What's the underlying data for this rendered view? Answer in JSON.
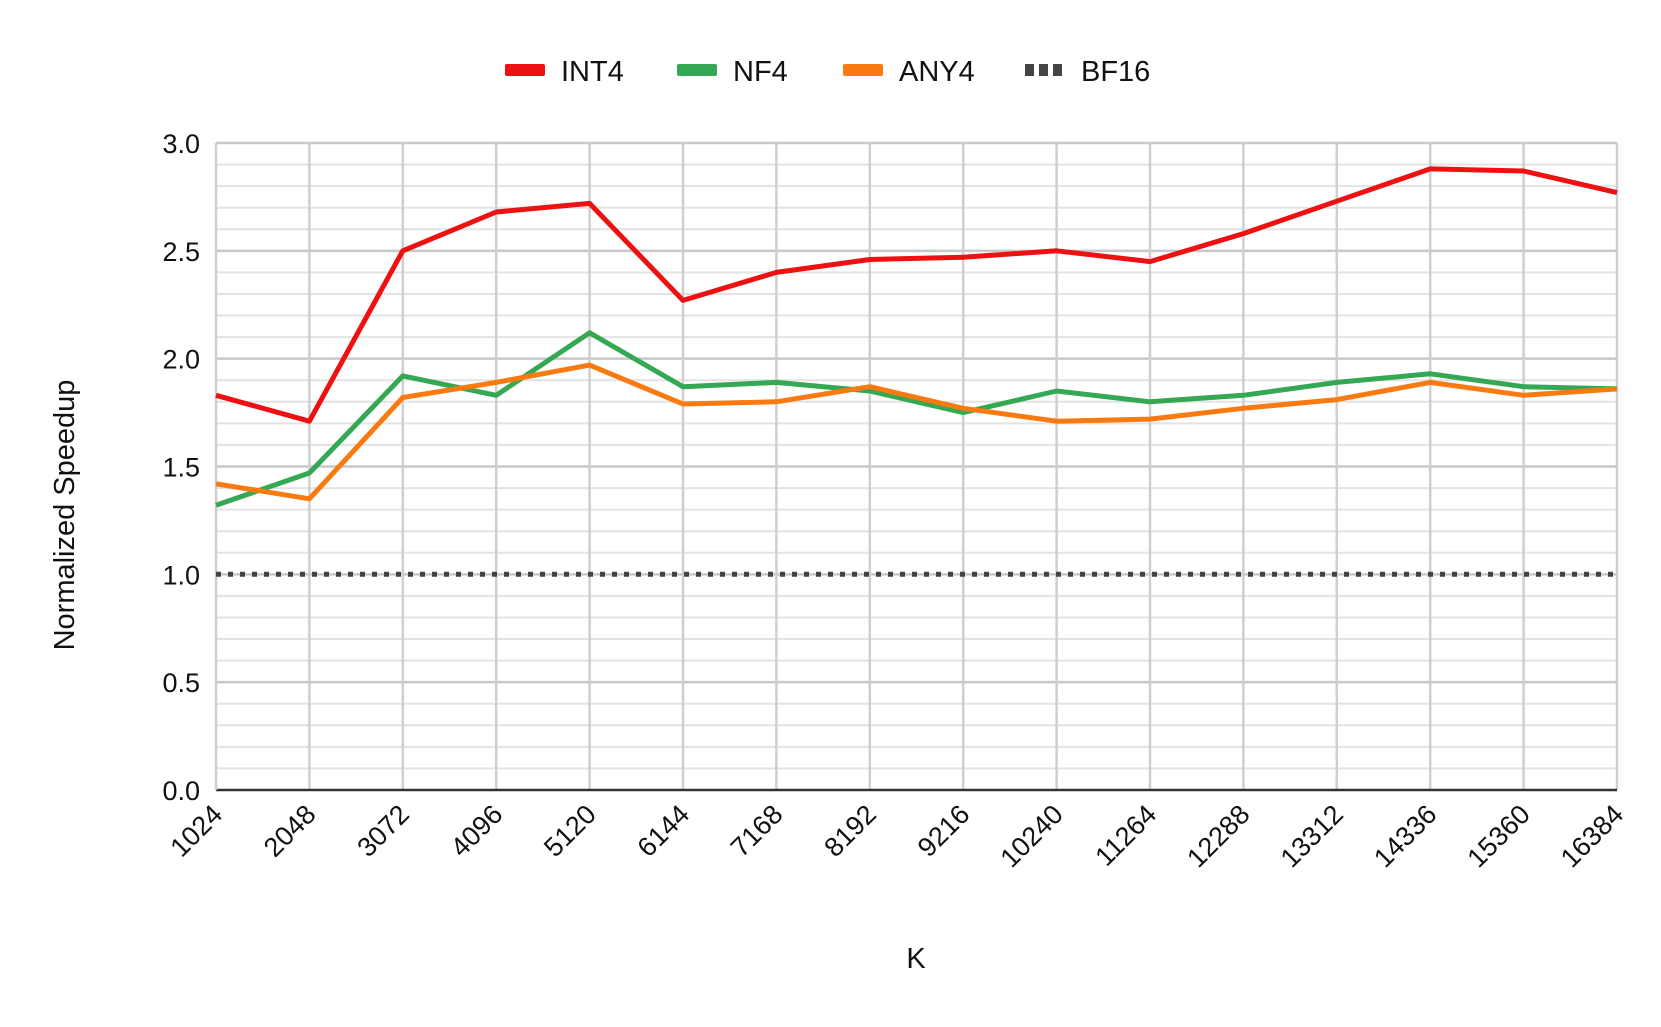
{
  "chart_data": {
    "type": "line",
    "title": "",
    "xlabel": "K",
    "ylabel": "Normalized Speedup",
    "categories": [
      "1024",
      "2048",
      "3072",
      "4096",
      "5120",
      "6144",
      "7168",
      "8192",
      "9216",
      "10240",
      "11264",
      "12288",
      "13312",
      "14336",
      "15360",
      "16384"
    ],
    "ylim": [
      0,
      3
    ],
    "yticks": [
      "0.0",
      "0.5",
      "1.0",
      "1.5",
      "2.0",
      "2.5",
      "3.0"
    ],
    "grid": true,
    "legend_position": "top",
    "series": [
      {
        "name": "INT4",
        "color": "#ee1111",
        "style": "solid",
        "values": [
          1.83,
          1.71,
          2.5,
          2.68,
          2.72,
          2.27,
          2.4,
          2.46,
          2.47,
          2.5,
          2.45,
          2.58,
          2.73,
          2.88,
          2.87,
          2.77
        ]
      },
      {
        "name": "NF4",
        "color": "#34a853",
        "style": "solid",
        "values": [
          1.32,
          1.47,
          1.92,
          1.83,
          2.12,
          1.87,
          1.89,
          1.85,
          1.75,
          1.85,
          1.8,
          1.83,
          1.89,
          1.93,
          1.87,
          1.86
        ]
      },
      {
        "name": "ANY4",
        "color": "#fa7a12",
        "style": "solid",
        "values": [
          1.42,
          1.35,
          1.82,
          1.89,
          1.97,
          1.79,
          1.8,
          1.87,
          1.77,
          1.71,
          1.72,
          1.77,
          1.81,
          1.89,
          1.83,
          1.86
        ]
      },
      {
        "name": "BF16",
        "color": "#444444",
        "style": "dotted",
        "values": [
          1,
          1,
          1,
          1,
          1,
          1,
          1,
          1,
          1,
          1,
          1,
          1,
          1,
          1,
          1,
          1
        ]
      }
    ]
  }
}
